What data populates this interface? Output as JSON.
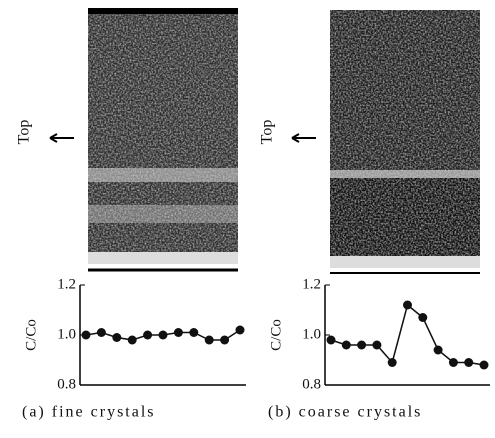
{
  "chart_data": [
    {
      "type": "line",
      "caption": "(a) fine crystals",
      "ylabel": "C/Co",
      "annotation": "Top",
      "values": [
        1.0,
        1.01,
        0.99,
        0.98,
        1.0,
        1.0,
        1.01,
        1.01,
        0.98,
        0.98,
        1.02
      ],
      "color": "#111111",
      "ylim": [
        0.8,
        1.2
      ],
      "yticks": [
        0.8,
        {
          "value": 1,
          "label": "1.0"
        },
        1.2
      ]
    },
    {
      "type": "line",
      "caption": "(b) coarse crystals",
      "ylabel": "C/Co",
      "annotation": "Top",
      "values": [
        0.98,
        0.96,
        0.96,
        0.96,
        0.89,
        1.12,
        1.07,
        0.94,
        0.89,
        0.89,
        0.88
      ],
      "color": "#111111",
      "ylim": [
        0.8,
        1.2
      ],
      "yticks": [
        0.8,
        {
          "value": 1,
          "label": "1.0"
        },
        1.2
      ]
    }
  ]
}
